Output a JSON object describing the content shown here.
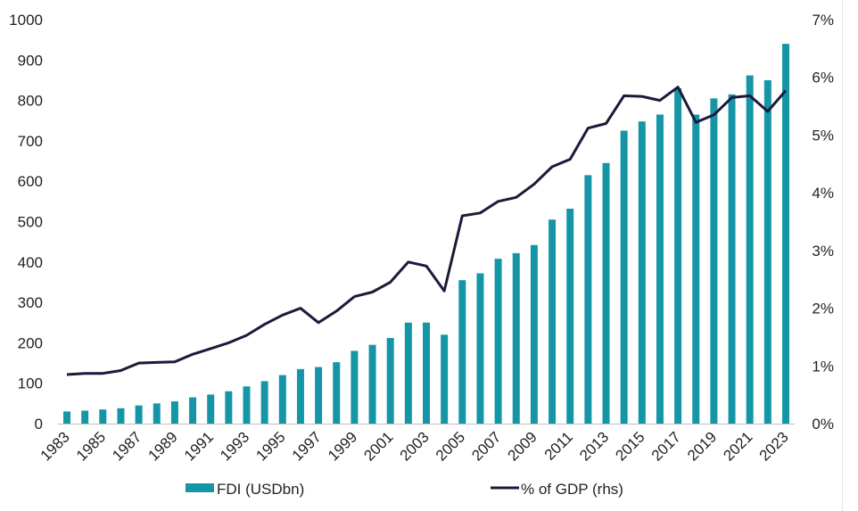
{
  "chart_data": {
    "type": "bar+line",
    "categories": [
      "1983",
      "1984",
      "1985",
      "1986",
      "1987",
      "1988",
      "1989",
      "1990",
      "1991",
      "1992",
      "1993",
      "1994",
      "1995",
      "1996",
      "1997",
      "1998",
      "1999",
      "2000",
      "2001",
      "2002",
      "2003",
      "2004",
      "2005",
      "2006",
      "2007",
      "2008",
      "2009",
      "2010",
      "2011",
      "2012",
      "2013",
      "2014",
      "2015",
      "2016",
      "2017",
      "2018",
      "2019",
      "2020",
      "2021",
      "2022",
      "2023"
    ],
    "x_tick_labels": [
      "1983",
      "1985",
      "1987",
      "1989",
      "1991",
      "1993",
      "1995",
      "1997",
      "1999",
      "2001",
      "2003",
      "2005",
      "2007",
      "2009",
      "2011",
      "2013",
      "2015",
      "2017",
      "2019",
      "2021",
      "2023"
    ],
    "series": [
      {
        "name": "FDI (USDbn)",
        "type": "bar",
        "axis": "left",
        "color": "#1496a6",
        "values": [
          30,
          32,
          35,
          38,
          45,
          50,
          55,
          65,
          72,
          80,
          92,
          105,
          120,
          135,
          140,
          152,
          180,
          195,
          212,
          250,
          250,
          220,
          355,
          372,
          408,
          422,
          442,
          505,
          532,
          615,
          645,
          725,
          748,
          765,
          830,
          765,
          805,
          815,
          862,
          850,
          940
        ]
      },
      {
        "name": "% of GDP (rhs)",
        "type": "line",
        "axis": "right",
        "color": "#1b1a3a",
        "values": [
          0.85,
          0.87,
          0.87,
          0.92,
          1.05,
          1.06,
          1.07,
          1.2,
          1.3,
          1.4,
          1.53,
          1.72,
          1.88,
          2.0,
          1.75,
          1.95,
          2.2,
          2.28,
          2.45,
          2.8,
          2.73,
          2.3,
          3.6,
          3.65,
          3.85,
          3.92,
          4.15,
          4.45,
          4.58,
          5.12,
          5.2,
          5.68,
          5.67,
          5.6,
          5.83,
          5.22,
          5.35,
          5.65,
          5.68,
          5.41,
          5.77
        ]
      }
    ],
    "left_axis": {
      "min": 0,
      "max": 1000,
      "ticks": [
        "0",
        "100",
        "200",
        "300",
        "400",
        "500",
        "600",
        "700",
        "800",
        "900",
        "1000"
      ]
    },
    "right_axis": {
      "min": 0,
      "max": 7,
      "ticks": [
        "0%",
        "1%",
        "2%",
        "3%",
        "4%",
        "5%",
        "6%",
        "7%"
      ]
    },
    "legend_position": "bottom",
    "grid": false,
    "title": "",
    "xlabel": "",
    "ylabel": ""
  }
}
